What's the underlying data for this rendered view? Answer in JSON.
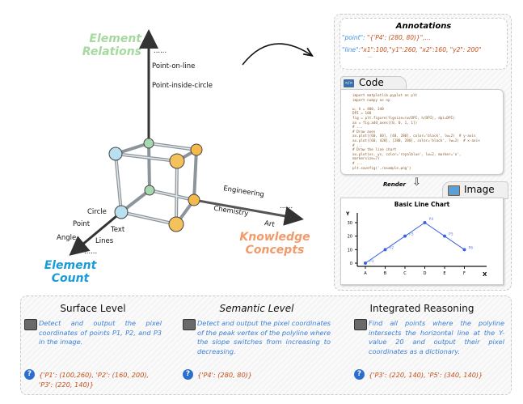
{
  "diagram": {
    "relations_axis": {
      "title": "Element Relations",
      "items": [
        "......",
        "Point-on-line",
        "Point-inside-circle"
      ],
      "color": "#a6d9a0"
    },
    "count_axis": {
      "title": "Element Count",
      "items": [
        "Circle",
        "Point",
        "Angle",
        "Text",
        "Lines",
        "......"
      ],
      "color": "#1a9ad6"
    },
    "concepts_axis": {
      "title": "Knowledge Concepts",
      "items": [
        "Engineering",
        "......",
        "Chemistry",
        "Art"
      ],
      "color": "#f29a6a"
    }
  },
  "annotations": {
    "title": "Annotations",
    "point_key": "\"point\":",
    "point_value": "\"{'P4': (280, 80)}\",...",
    "line_key": "\"line\":",
    "line_value": "\"x1\":100,\"y1\":260, \"x2\":160, \"y2\": 200\"",
    "ellipsis": "..."
  },
  "code": {
    "title": "Code",
    "text": "import matplotlib.pyplot as plt\nimport numpy as np\n\nw, h = 480, 340\nDPI = 100\nfig = plt.figure(figsize=(w/DPI, h/DPI), dpi=DPI)\nax = fig.add_axes([0, 0, 1, 1])\n# ...\n# Draw axes\nax.plot([60, 60], [40, 280], color='black', lw=2)  # y-axis\nax.plot([60, 420], [280, 280], color='black', lw=2)  # x-axis\n# ...\n# Draw the line chart\nax.plot(xs, ys, color='royalblue', lw=2, marker='o',\nmarkersize=7)\n# ...\nplt.savefig('./example.png')"
  },
  "render_label": "Render",
  "image_panel": {
    "title": "Image",
    "chart_data": {
      "type": "line",
      "title": "Basic Line Chart",
      "xlabel": "X",
      "ylabel": "Y",
      "categories": [
        "A",
        "B",
        "C",
        "D",
        "E",
        "F"
      ],
      "point_labels": [
        "P1",
        "P2",
        "P3",
        "P4",
        "P5",
        "P6"
      ],
      "values": [
        0,
        10,
        20,
        30,
        20,
        10
      ],
      "yticks": [
        0,
        10,
        20,
        30
      ],
      "ylim": [
        -2,
        33
      ],
      "color": "#3b63e0"
    }
  },
  "tasks": [
    {
      "title": "Surface Level",
      "question": "Detect and output the pixel coordinates of points P1, P2, and P3 in the image.",
      "answer": "{'P1': (100,260), 'P2': (160, 200), 'P3': (220, 140)}"
    },
    {
      "title": "Semantic Level",
      "question": "Detect and output the pixel coordinates of the peak vertex of the polyline where the slope switches from increasing to decreasing.",
      "answer": "{'P4': (280, 80)}"
    },
    {
      "title": "Integrated Reasoning",
      "question": "Find all points where the polyline intersects the horizontal line at the Y-value 20 and output their pixel coordinates as a dictionary.",
      "answer": "{'P3': (220, 140), 'P5': (340, 140)}"
    }
  ]
}
